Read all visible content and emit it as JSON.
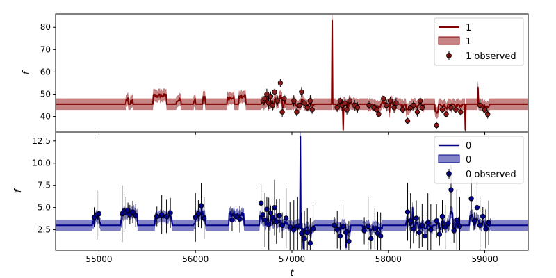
{
  "chart_data": [
    {
      "type": "line",
      "panel": "top",
      "ylabel": "f",
      "xlabel": "",
      "xlim": [
        54550,
        59450
      ],
      "ylim": [
        33,
        86
      ],
      "yticks": [
        40,
        50,
        60,
        70,
        80
      ],
      "xticks": [
        55000,
        56000,
        57000,
        58000,
        59000
      ],
      "x_tick_labels_visible": false,
      "colors": {
        "line": "#800000",
        "band": "#b35959",
        "point": "#8b1a1a"
      },
      "baseline": 45.5,
      "band_halfwidth": 2.5,
      "legend": {
        "position": "top-right",
        "entries": [
          "1",
          "1",
          "1 observed"
        ]
      },
      "series": [
        {
          "name": "1",
          "kind": "line"
        },
        {
          "name": "1",
          "kind": "band"
        },
        {
          "name": "1 observed",
          "kind": "points"
        }
      ],
      "bumps": [
        [
          55280,
          55300,
          48
        ],
        [
          55330,
          55350,
          47.5
        ],
        [
          55560,
          55700,
          50
        ],
        [
          55800,
          55850,
          48
        ],
        [
          55980,
          56000,
          48
        ],
        [
          56080,
          56100,
          49
        ],
        [
          56330,
          56400,
          49
        ],
        [
          56450,
          56520,
          50
        ]
      ],
      "spikes": [
        [
          57420,
          83
        ],
        [
          57530,
          34
        ],
        [
          58010,
          42
        ],
        [
          58800,
          34
        ],
        [
          58930,
          53
        ]
      ],
      "observed_points": [
        [
          56700,
          47
        ],
        [
          56720,
          48
        ],
        [
          56740,
          50
        ],
        [
          56760,
          46
        ],
        [
          56780,
          49
        ],
        [
          56800,
          45
        ],
        [
          56820,
          51
        ],
        [
          56850,
          47
        ],
        [
          56880,
          55
        ],
        [
          56900,
          42
        ],
        [
          56920,
          48
        ],
        [
          57020,
          47
        ],
        [
          57050,
          42
        ],
        [
          57080,
          45
        ],
        [
          57100,
          51
        ],
        [
          57130,
          46
        ],
        [
          57160,
          44
        ],
        [
          57190,
          47
        ],
        [
          57210,
          43
        ],
        [
          57470,
          44
        ],
        [
          57500,
          47
        ],
        [
          57520,
          45
        ],
        [
          57550,
          46
        ],
        [
          57570,
          43
        ],
        [
          57600,
          47
        ],
        [
          57650,
          45
        ],
        [
          57680,
          44
        ],
        [
          57800,
          45
        ],
        [
          57850,
          44
        ],
        [
          57880,
          43
        ],
        [
          57900,
          41
        ],
        [
          57950,
          48
        ],
        [
          57980,
          45
        ],
        [
          58020,
          47
        ],
        [
          58060,
          44
        ],
        [
          58080,
          46
        ],
        [
          58150,
          43
        ],
        [
          58200,
          38
        ],
        [
          58230,
          44
        ],
        [
          58260,
          45
        ],
        [
          58300,
          42
        ],
        [
          58330,
          47
        ],
        [
          58350,
          44
        ],
        [
          58500,
          36
        ],
        [
          58560,
          43
        ],
        [
          58600,
          41
        ],
        [
          58650,
          44
        ],
        [
          58700,
          43
        ],
        [
          58750,
          42
        ],
        [
          58950,
          45
        ],
        [
          59000,
          43
        ],
        [
          59030,
          41
        ]
      ]
    },
    {
      "type": "line",
      "panel": "bottom",
      "ylabel": "f",
      "xlabel": "t",
      "xlim": [
        54550,
        59450
      ],
      "ylim": [
        0.2,
        13.5
      ],
      "yticks": [
        2.5,
        5.0,
        7.5,
        10.0,
        12.5
      ],
      "ytick_labels": [
        "2.5",
        "5.0",
        "7.5",
        "10.0",
        "12.5"
      ],
      "xticks": [
        55000,
        56000,
        57000,
        58000,
        59000
      ],
      "colors": {
        "line": "#00008b",
        "band": "#5a5ab4",
        "point": "#00008b"
      },
      "baseline": 3.0,
      "band_halfwidth": 0.6,
      "legend": {
        "position": "top-right",
        "entries": [
          "0",
          "0",
          "0 observed"
        ]
      },
      "series": [
        {
          "name": "0",
          "kind": "line"
        },
        {
          "name": "0",
          "kind": "band"
        },
        {
          "name": "0 observed",
          "kind": "points"
        }
      ],
      "bumps": [
        [
          54950,
          55000,
          4
        ],
        [
          55240,
          55400,
          4.5
        ],
        [
          55580,
          55750,
          4.1
        ],
        [
          56000,
          56100,
          4.2
        ],
        [
          56350,
          56500,
          4.5
        ]
      ],
      "spikes": [
        [
          57090,
          13
        ],
        [
          57120,
          0.4
        ],
        [
          57560,
          0.5
        ],
        [
          58250,
          5
        ]
      ],
      "observed_points": [
        [
          54950,
          3.9
        ],
        [
          54980,
          4.2
        ],
        [
          55000,
          4.3
        ],
        [
          55240,
          4.3
        ],
        [
          55260,
          4.6
        ],
        [
          55280,
          4.4
        ],
        [
          55300,
          4.7
        ],
        [
          55320,
          4.2
        ],
        [
          55350,
          4.5
        ],
        [
          55380,
          4.1
        ],
        [
          55600,
          4.0
        ],
        [
          55650,
          4.2
        ],
        [
          55700,
          4.0
        ],
        [
          55740,
          4.4
        ],
        [
          56000,
          3.9
        ],
        [
          56030,
          4.3
        ],
        [
          56060,
          5.2
        ],
        [
          56090,
          3.8
        ],
        [
          56380,
          3.6
        ],
        [
          56420,
          4.0
        ],
        [
          56460,
          3.7
        ],
        [
          56680,
          5.5
        ],
        [
          56700,
          4.2
        ],
        [
          56720,
          3.6
        ],
        [
          56740,
          4.8
        ],
        [
          56760,
          3.1
        ],
        [
          56780,
          4.4
        ],
        [
          56800,
          3.9
        ],
        [
          56820,
          5.0
        ],
        [
          56840,
          3.4
        ],
        [
          56870,
          4.1
        ],
        [
          56900,
          3.0
        ],
        [
          56940,
          3.8
        ],
        [
          56980,
          2.8
        ],
        [
          57020,
          2.5
        ],
        [
          57060,
          2.9
        ],
        [
          57100,
          2.1
        ],
        [
          57130,
          1.5
        ],
        [
          57160,
          2.2
        ],
        [
          57190,
          1.0
        ],
        [
          57220,
          2.6
        ],
        [
          57440,
          3.0
        ],
        [
          57470,
          2.5
        ],
        [
          57500,
          1.8
        ],
        [
          57530,
          2.9
        ],
        [
          57560,
          2.2
        ],
        [
          57590,
          1.2
        ],
        [
          57750,
          2.4
        ],
        [
          57790,
          2.9
        ],
        [
          57820,
          1.5
        ],
        [
          57860,
          2.6
        ],
        [
          57890,
          2.1
        ],
        [
          57920,
          1.8
        ],
        [
          58200,
          4.5
        ],
        [
          58230,
          3.5
        ],
        [
          58260,
          2.6
        ],
        [
          58290,
          3.8
        ],
        [
          58320,
          2.2
        ],
        [
          58350,
          3.0
        ],
        [
          58380,
          1.8
        ],
        [
          58410,
          3.3
        ],
        [
          58440,
          2.5
        ],
        [
          58500,
          3.5
        ],
        [
          58530,
          2.0
        ],
        [
          58560,
          4.0
        ],
        [
          58590,
          2.8
        ],
        [
          58620,
          3.2
        ],
        [
          58650,
          7.0
        ],
        [
          58680,
          2.4
        ],
        [
          58710,
          3.6
        ],
        [
          58740,
          2.9
        ],
        [
          58860,
          6.0
        ],
        [
          58890,
          3.5
        ],
        [
          58920,
          5.0
        ],
        [
          58950,
          3.0
        ],
        [
          58980,
          4.0
        ],
        [
          59010,
          2.6
        ],
        [
          59040,
          3.3
        ]
      ]
    }
  ]
}
